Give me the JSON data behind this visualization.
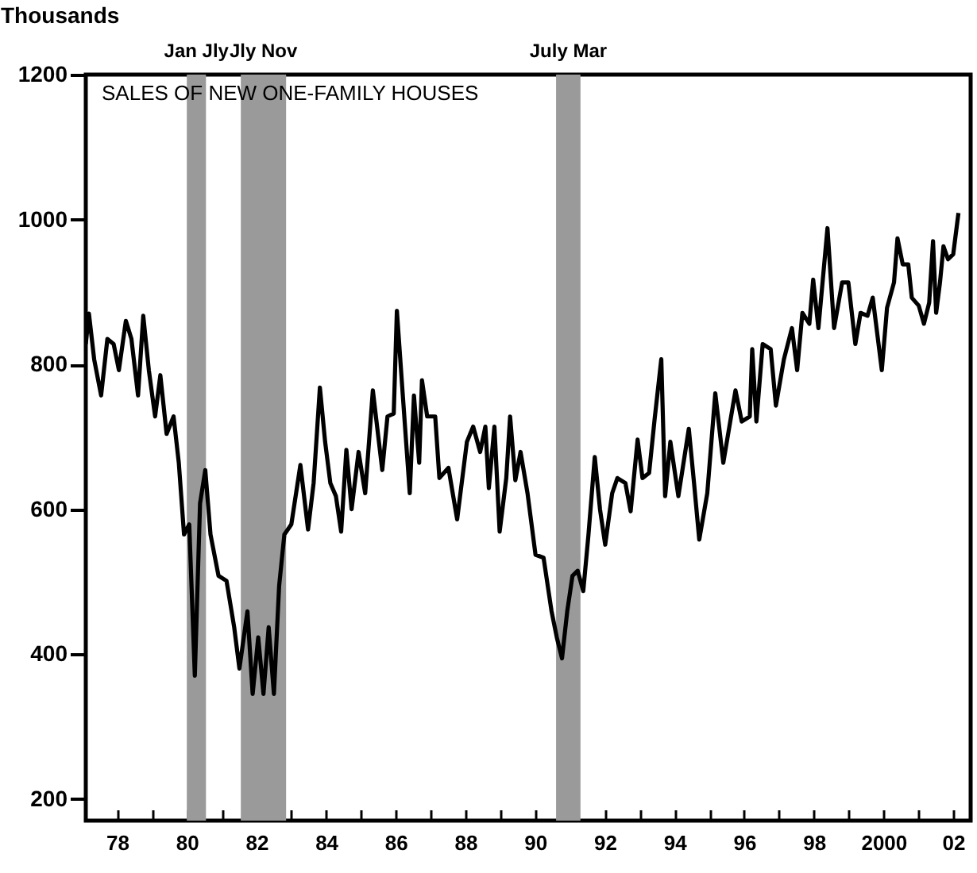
{
  "chart_data": {
    "type": "line",
    "title": "SALES OF NEW ONE-FAMILY HOUSES",
    "ylabel": "Thousands",
    "color": "#000000",
    "line_style": "solid",
    "x": [
      1977.1,
      1977.19,
      1977.34,
      1977.54,
      1977.72,
      1977.9,
      1978.05,
      1978.25,
      1978.41,
      1978.6,
      1978.75,
      1978.91,
      1979.09,
      1979.24,
      1979.42,
      1979.62,
      1979.77,
      1979.92,
      1980.07,
      1980.23,
      1980.38,
      1980.53,
      1980.68,
      1980.91,
      1981.14,
      1981.36,
      1981.51,
      1981.74,
      1981.89,
      1982.05,
      1982.2,
      1982.35,
      1982.5,
      1982.65,
      1982.8,
      1983.0,
      1983.26,
      1983.48,
      1983.64,
      1983.82,
      1983.97,
      1984.12,
      1984.28,
      1984.43,
      1984.58,
      1984.73,
      1984.93,
      1985.12,
      1985.34,
      1985.61,
      1985.76,
      1985.94,
      1986.03,
      1986.19,
      1986.4,
      1986.52,
      1986.67,
      1986.75,
      1986.9,
      1987.13,
      1987.25,
      1987.51,
      1987.76,
      1988.04,
      1988.22,
      1988.42,
      1988.57,
      1988.67,
      1988.83,
      1988.98,
      1989.17,
      1989.28,
      1989.43,
      1989.58,
      1989.78,
      1990.01,
      1990.24,
      1990.47,
      1990.62,
      1990.77,
      1990.92,
      1991.07,
      1991.22,
      1991.38,
      1991.53,
      1991.71,
      1991.86,
      1992.01,
      1992.21,
      1992.36,
      1992.59,
      1992.74,
      1992.94,
      1993.08,
      1993.27,
      1993.43,
      1993.62,
      1993.73,
      1993.88,
      1994.11,
      1994.41,
      1994.56,
      1994.71,
      1994.94,
      1995.17,
      1995.4,
      1995.55,
      1995.75,
      1995.93,
      1996.16,
      1996.23,
      1996.35,
      1996.53,
      1996.76,
      1996.91,
      1997.14,
      1997.37,
      1997.52,
      1997.67,
      1997.87,
      1997.98,
      1998.13,
      1998.39,
      1998.58,
      1998.81,
      1998.99,
      1999.19,
      1999.34,
      1999.54,
      1999.69,
      1999.95,
      2000.1,
      2000.3,
      2000.4,
      2000.55,
      2000.71,
      2000.81,
      2001.01,
      2001.16,
      2001.31,
      2001.42,
      2001.51,
      2001.62,
      2001.72,
      2001.85,
      2002.0,
      2002.15
    ],
    "values": [
      828,
      870,
      807,
      757,
      835,
      828,
      792,
      860,
      835,
      757,
      867,
      792,
      728,
      785,
      704,
      728,
      664,
      565,
      579,
      370,
      608,
      654,
      565,
      508,
      501,
      437,
      380,
      459,
      345,
      423,
      345,
      437,
      345,
      494,
      565,
      579,
      661,
      572,
      636,
      768,
      693,
      636,
      618,
      569,
      682,
      600,
      679,
      622,
      764,
      654,
      728,
      732,
      874,
      764,
      622,
      757,
      664,
      778,
      728,
      728,
      643,
      657,
      586,
      693,
      714,
      679,
      714,
      629,
      714,
      569,
      643,
      728,
      640,
      679,
      622,
      537,
      533,
      459,
      423,
      394,
      459,
      508,
      515,
      487,
      565,
      672,
      600,
      551,
      622,
      643,
      636,
      597,
      696,
      643,
      650,
      725,
      807,
      618,
      693,
      618,
      711,
      636,
      558,
      622,
      760,
      664,
      707,
      764,
      721,
      728,
      821,
      721,
      828,
      821,
      743,
      807,
      850,
      792,
      871,
      856,
      917,
      850,
      988,
      850,
      913,
      913,
      828,
      871,
      867,
      892,
      792,
      878,
      913,
      974,
      938,
      938,
      892,
      881,
      856,
      885,
      970,
      871,
      913,
      963,
      945,
      952,
      1009
    ],
    "xlim": [
      1977.1,
      2002.5
    ],
    "xticks": [
      {
        "value": 1978,
        "label": "78"
      },
      {
        "value": 1979,
        "label": null
      },
      {
        "value": 1980,
        "label": "80"
      },
      {
        "value": 1981,
        "label": null
      },
      {
        "value": 1982,
        "label": "82"
      },
      {
        "value": 1983,
        "label": null
      },
      {
        "value": 1984,
        "label": "84"
      },
      {
        "value": 1985,
        "label": null
      },
      {
        "value": 1986,
        "label": "86"
      },
      {
        "value": 1987,
        "label": null
      },
      {
        "value": 1988,
        "label": "88"
      },
      {
        "value": 1989,
        "label": null
      },
      {
        "value": 1990,
        "label": "90"
      },
      {
        "value": 1991,
        "label": null
      },
      {
        "value": 1992,
        "label": "92"
      },
      {
        "value": 1993,
        "label": null
      },
      {
        "value": 1994,
        "label": "94"
      },
      {
        "value": 1995,
        "label": null
      },
      {
        "value": 1996,
        "label": "96"
      },
      {
        "value": 1997,
        "label": null
      },
      {
        "value": 1998,
        "label": "98"
      },
      {
        "value": 1999,
        "label": null
      },
      2000,
      {
        "value": 2001,
        "label": null
      },
      {
        "value": 2002,
        "label": "02"
      }
    ],
    "ylim": [
      170,
      1200
    ],
    "yticks": [
      200,
      400,
      600,
      800,
      1000,
      1200
    ],
    "bands": [
      {
        "axis": "x",
        "from": 1980.0,
        "to": 1980.55,
        "label": "Jan Jly",
        "color": "#9a9a9a"
      },
      {
        "axis": "x",
        "from": 1981.55,
        "to": 1982.85,
        "label": "Jly Nov",
        "color": "#9a9a9a"
      },
      {
        "axis": "x",
        "from": 1990.6,
        "to": 1991.3,
        "label": "July Mar",
        "color": "#9a9a9a"
      }
    ]
  }
}
